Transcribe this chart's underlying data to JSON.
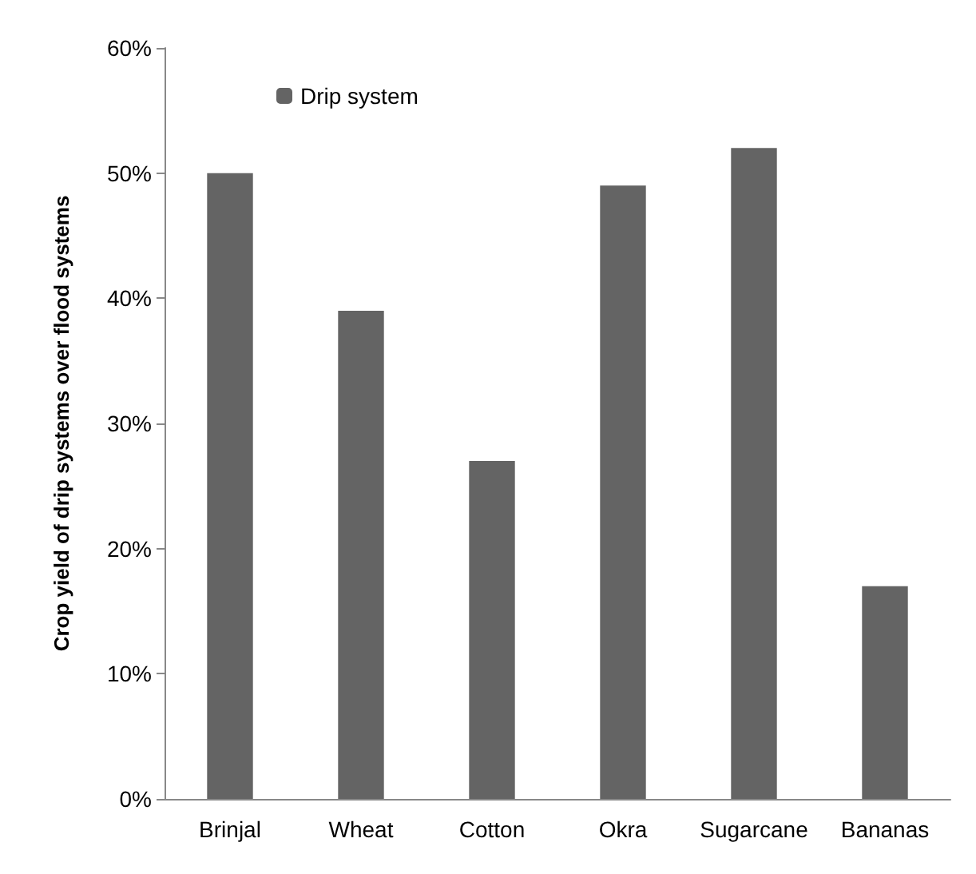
{
  "chart_data": {
    "type": "bar",
    "ylabel": "Crop yield of drip systems over flood systems",
    "categories": [
      "Brinjal",
      "Wheat",
      "Cotton",
      "Okra",
      "Sugarcane",
      "Bananas"
    ],
    "series": [
      {
        "name": "Drip system",
        "color": "#646464",
        "values": [
          50,
          39,
          27,
          49,
          52,
          17
        ]
      }
    ],
    "ylim": [
      0,
      60
    ],
    "yticks": [
      {
        "value": 0,
        "label": "0%"
      },
      {
        "value": 10,
        "label": "10%"
      },
      {
        "value": 20,
        "label": "20%"
      },
      {
        "value": 30,
        "label": "30%"
      },
      {
        "value": 40,
        "label": "40%"
      },
      {
        "value": 50,
        "label": "50%"
      },
      {
        "value": 60,
        "label": "60%"
      }
    ],
    "grid": false,
    "legend": "top left"
  }
}
